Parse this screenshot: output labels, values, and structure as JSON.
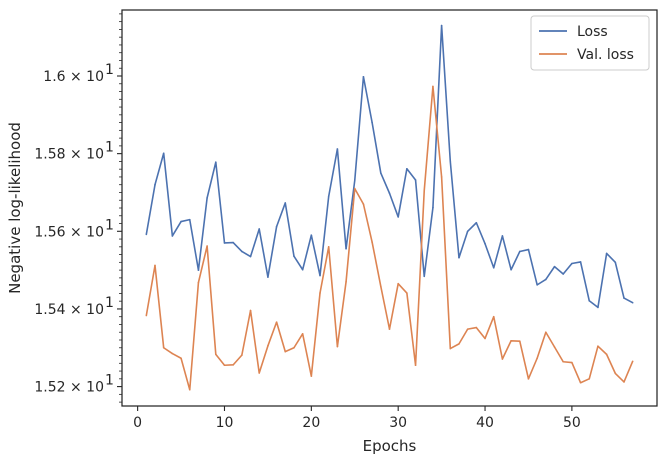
{
  "chart_data": {
    "type": "line",
    "xlabel": "Epochs",
    "ylabel": "Negative log-likelihood",
    "xlim": [
      -1.8,
      59.8
    ],
    "ylim": [
      15.15,
      16.17
    ],
    "x_ticks": [
      0,
      10,
      20,
      30,
      40,
      50
    ],
    "x_tick_labels": [
      "0",
      "10",
      "20",
      "30",
      "40",
      "50"
    ],
    "y_ticks": [
      15.2,
      15.4,
      15.6,
      15.8,
      16.0
    ],
    "y_tick_labels": [
      "1.52 × 10",
      "1.54 × 10",
      "1.56 × 10",
      "1.58 × 10",
      "1.6 × 10"
    ],
    "y_tick_exponent": "1",
    "y_scale": "log",
    "grid": false,
    "legend_position": "top-right",
    "x": [
      1,
      2,
      3,
      4,
      5,
      6,
      7,
      8,
      9,
      10,
      11,
      12,
      13,
      14,
      15,
      16,
      17,
      18,
      19,
      20,
      21,
      22,
      23,
      24,
      25,
      26,
      27,
      28,
      29,
      30,
      31,
      32,
      33,
      34,
      35,
      36,
      37,
      38,
      39,
      40,
      41,
      42,
      43,
      44,
      45,
      46,
      47,
      48,
      49,
      50,
      51,
      52,
      53,
      54,
      55,
      56,
      57
    ],
    "series": [
      {
        "name": "Loss",
        "color": "#4c72b0",
        "values": [
          15.592,
          15.72,
          15.801,
          15.588,
          15.625,
          15.63,
          15.5,
          15.686,
          15.778,
          15.57,
          15.571,
          15.548,
          15.535,
          15.606,
          15.482,
          15.612,
          15.673,
          15.536,
          15.501,
          15.59,
          15.486,
          15.69,
          15.812,
          15.555,
          15.731,
          15.998,
          15.88,
          15.75,
          15.698,
          15.637,
          15.761,
          15.732,
          15.484,
          15.661,
          16.13,
          15.78,
          15.532,
          15.6,
          15.622,
          15.568,
          15.506,
          15.588,
          15.501,
          15.548,
          15.553,
          15.462,
          15.476,
          15.509,
          15.49,
          15.517,
          15.521,
          15.421,
          15.404,
          15.543,
          15.52,
          15.428,
          15.416
        ]
      },
      {
        "name": "Val. loss",
        "color": "#dd8452",
        "values": [
          15.383,
          15.512,
          15.3,
          15.285,
          15.273,
          15.192,
          15.468,
          15.562,
          15.283,
          15.255,
          15.256,
          15.281,
          15.396,
          15.235,
          15.305,
          15.366,
          15.29,
          15.3,
          15.336,
          15.227,
          15.441,
          15.56,
          15.303,
          15.47,
          15.71,
          15.67,
          15.572,
          15.458,
          15.348,
          15.465,
          15.441,
          15.255,
          15.705,
          15.973,
          15.74,
          15.298,
          15.31,
          15.348,
          15.352,
          15.324,
          15.38,
          15.271,
          15.318,
          15.317,
          15.22,
          15.273,
          15.34,
          15.302,
          15.264,
          15.262,
          15.21,
          15.22,
          15.304,
          15.283,
          15.234,
          15.212,
          15.265
        ]
      }
    ]
  }
}
